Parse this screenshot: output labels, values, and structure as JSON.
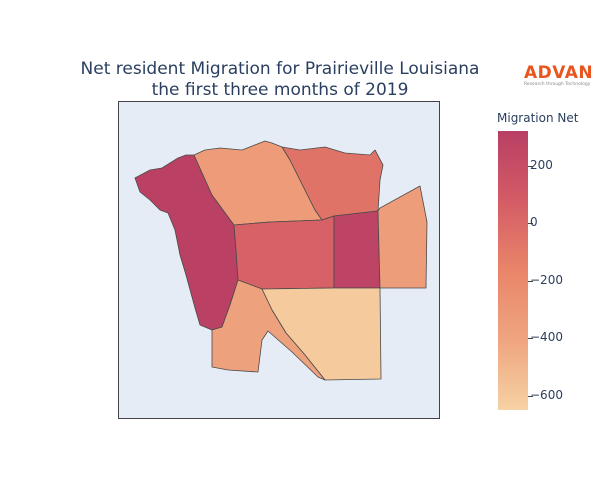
{
  "title_line1": "Net resident Migration for Prairieville Louisiana",
  "title_line2": "the first three months of 2019",
  "logo": {
    "name": "ADVAN",
    "tagline": "Research through Technology"
  },
  "colorbar": {
    "title": "Migration Net",
    "ticks": [
      "200",
      "0",
      "−200",
      "−400",
      "−600"
    ],
    "colors": {
      "high": "#b83f64",
      "mid": "#e98569",
      "low": "#f6d2a4"
    }
  },
  "regions": [
    {
      "id": "west-strip",
      "value": 300
    },
    {
      "id": "north-central",
      "value": -330
    },
    {
      "id": "north-east",
      "value": -60
    },
    {
      "id": "center",
      "value": 50
    },
    {
      "id": "east-center",
      "value": 280
    },
    {
      "id": "far-east",
      "value": -350
    },
    {
      "id": "south-east",
      "value": -610
    },
    {
      "id": "south-west",
      "value": -380
    }
  ]
}
